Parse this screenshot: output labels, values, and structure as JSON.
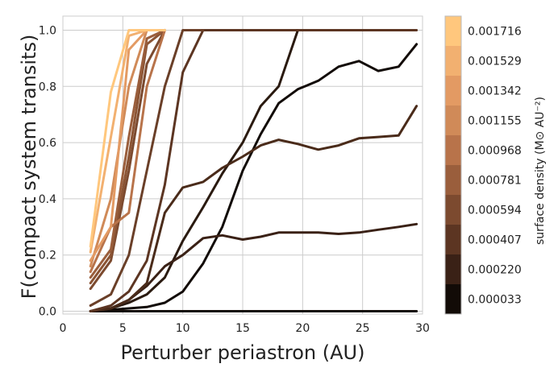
{
  "chart_data": {
    "type": "line",
    "xlabel": "Perturber periastron (AU)",
    "ylabel": "F(compact system transits)",
    "xlim": [
      0,
      30
    ],
    "ylim": [
      -0.01,
      1.05
    ],
    "x_ticks": [
      "0",
      "5",
      "10",
      "15",
      "20",
      "25",
      "30"
    ],
    "y_ticks": [
      "0.0",
      "0.2",
      "0.4",
      "0.6",
      "0.8",
      "1.0"
    ],
    "grid": true,
    "colorbar": {
      "title": "surface density (M⊙ AU⁻²)",
      "tick_labels": [
        "0.001716",
        "0.001529",
        "0.001342",
        "0.001155",
        "0.000968",
        "0.000781",
        "0.000594",
        "0.000407",
        "0.000220",
        "0.000033"
      ],
      "colors": [
        "#ffc77d",
        "#f2b070",
        "#e39a63",
        "#d08a58",
        "#b8734a",
        "#9a5e3c",
        "#7c4a2f",
        "#5c3522",
        "#3a2116",
        "#120b07"
      ]
    },
    "series": [
      {
        "color": "#120b07",
        "x": [
          2.3,
          4,
          5.5,
          7,
          8.5,
          10,
          11.7,
          13.3,
          15,
          16.5,
          18,
          19.6,
          21.3,
          23,
          24.7,
          26.3,
          28,
          29.5
        ],
        "y": [
          0,
          0,
          0,
          0,
          0,
          0,
          0,
          0,
          0,
          0,
          0,
          0,
          0,
          0,
          0,
          0,
          0,
          0
        ]
      },
      {
        "color": "#120b07",
        "x": [
          2.3,
          4,
          5.5,
          7,
          8.5,
          10,
          11.7,
          13.3,
          15,
          16.5,
          18,
          19.6,
          21.3,
          23,
          24.7,
          26.3,
          28,
          29.5
        ],
        "y": [
          0,
          0.005,
          0.01,
          0.015,
          0.03,
          0.07,
          0.17,
          0.3,
          0.5,
          0.63,
          0.74,
          0.79,
          0.82,
          0.87,
          0.89,
          0.855,
          0.87,
          0.95
        ]
      },
      {
        "color": "#2a1a10",
        "x": [
          2.3,
          4,
          5.5,
          7,
          8.5,
          10,
          11.7,
          13.3,
          15,
          16.5,
          18,
          19.6
        ],
        "y": [
          0,
          0.01,
          0.03,
          0.06,
          0.12,
          0.25,
          0.37,
          0.49,
          0.6,
          0.73,
          0.8,
          1.0
        ]
      },
      {
        "color": "#3a2116",
        "x": [
          2.3,
          4,
          5.5,
          7,
          8.5,
          10,
          11.7,
          13.3,
          15,
          16.5,
          18,
          19.6,
          21.3,
          23,
          24.7,
          26.3,
          28,
          29.5
        ],
        "y": [
          0,
          0.01,
          0.04,
          0.09,
          0.16,
          0.2,
          0.26,
          0.27,
          0.255,
          0.265,
          0.28,
          0.28,
          0.28,
          0.275,
          0.28,
          0.29,
          0.3,
          0.31
        ]
      },
      {
        "color": "#4a2b1a",
        "x": [
          2.3,
          4,
          5.5,
          7,
          8.5,
          10,
          11.7,
          13.3,
          15,
          16.5,
          18,
          19.6,
          21.3,
          23,
          24.7,
          26.3,
          28,
          29.5
        ],
        "y": [
          0,
          0.01,
          0.04,
          0.1,
          0.35,
          0.44,
          0.46,
          0.51,
          0.55,
          0.59,
          0.61,
          0.595,
          0.575,
          0.59,
          0.615,
          0.62,
          0.625,
          0.73
        ]
      },
      {
        "color": "#5c3522",
        "x": [
          2.3,
          4,
          5.5,
          7,
          8.5,
          10,
          11.7,
          13.3,
          15,
          16.5,
          18,
          19.6,
          21.3,
          23,
          24.7,
          26.3,
          28,
          29.5
        ],
        "y": [
          0,
          0.02,
          0.07,
          0.18,
          0.45,
          0.85,
          1,
          1,
          1,
          1,
          1,
          1,
          1,
          1,
          1,
          1,
          1,
          1
        ]
      },
      {
        "color": "#6a3f28",
        "x": [
          2.3,
          4,
          5.5,
          7,
          8.5,
          10,
          11.7
        ],
        "y": [
          0.02,
          0.06,
          0.2,
          0.5,
          0.8,
          1,
          1
        ]
      },
      {
        "color": "#7c4a2f",
        "x": [
          2.3,
          4,
          5.5,
          7,
          8.5
        ],
        "y": [
          0.08,
          0.18,
          0.5,
          0.88,
          1
        ]
      },
      {
        "color": "#8b5434",
        "x": [
          2.3,
          4,
          5.5,
          7,
          8.5
        ],
        "y": [
          0.1,
          0.2,
          0.55,
          0.95,
          1
        ]
      },
      {
        "color": "#9a5e3c",
        "x": [
          2.3,
          4,
          5.5,
          7,
          8.5
        ],
        "y": [
          0.12,
          0.22,
          0.62,
          0.97,
          1
        ]
      },
      {
        "color": "#b8734a",
        "x": [
          2.3,
          4,
          5.5,
          7,
          8.5
        ],
        "y": [
          0.14,
          0.3,
          0.35,
          0.8,
          1
        ]
      },
      {
        "color": "#d08a58",
        "x": [
          2.3,
          4,
          5.5,
          7,
          8.5
        ],
        "y": [
          0.16,
          0.4,
          0.8,
          1,
          1
        ]
      },
      {
        "color": "#e39a63",
        "x": [
          2.3,
          4,
          5.5,
          7,
          8.5
        ],
        "y": [
          0.18,
          0.3,
          0.93,
          1,
          1
        ]
      },
      {
        "color": "#f2b070",
        "x": [
          2.3,
          4,
          5.5,
          7,
          8.5
        ],
        "y": [
          0.21,
          0.62,
          0.98,
          1,
          1
        ]
      },
      {
        "color": "#ffc77d",
        "x": [
          2.3,
          4,
          5.5,
          7,
          8.5
        ],
        "y": [
          0.23,
          0.78,
          1,
          1,
          1
        ]
      }
    ]
  }
}
